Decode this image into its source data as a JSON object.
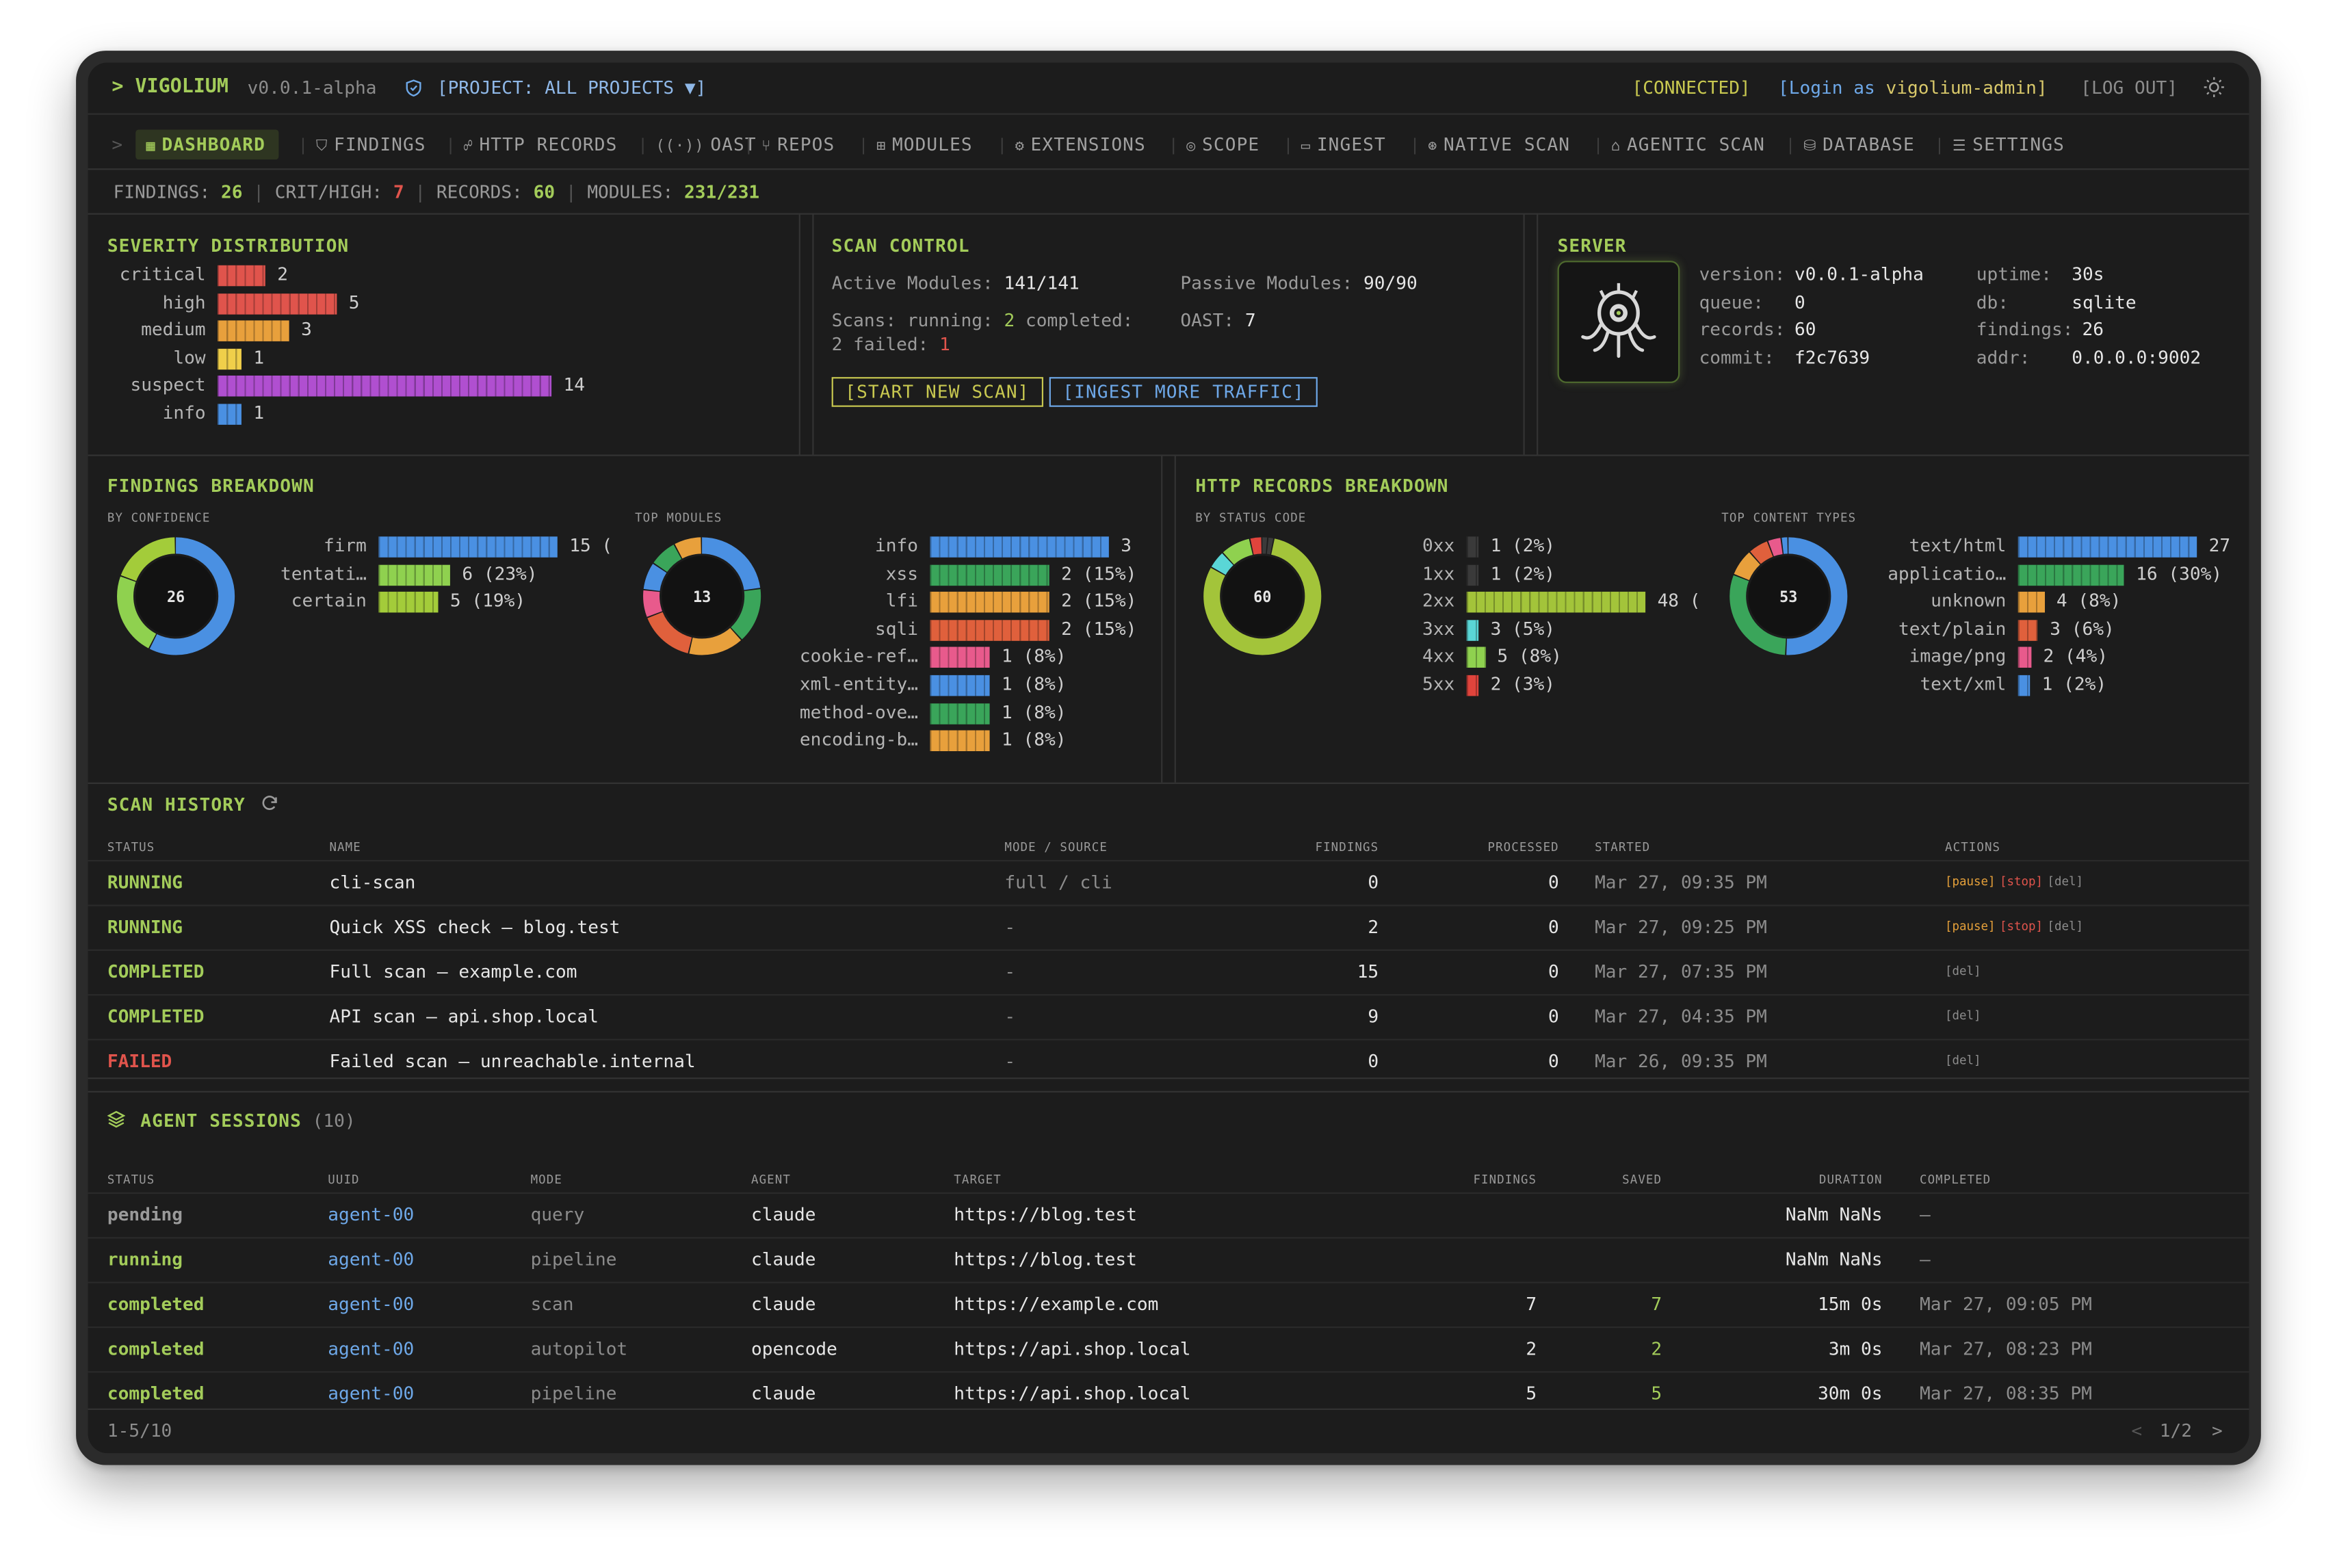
{
  "app": {
    "name": "VIGOLIUM",
    "prompt": ">",
    "version": "v0.0.1-alpha",
    "project": "[PROJECT: ALL PROJECTS ▼]"
  },
  "top_right": {
    "status": "[CONNECTED]",
    "login_prefix": "[Login as",
    "user": "vigolium-admin]",
    "logout": "[LOG OUT]"
  },
  "nav": [
    {
      "label": "DASHBOARD",
      "icon": "dashboard-icon"
    },
    {
      "label": "FINDINGS",
      "icon": "shield-icon"
    },
    {
      "label": "HTTP RECORDS",
      "icon": "network-icon"
    },
    {
      "label": "OAST",
      "icon": "radio-icon"
    },
    {
      "label": "REPOS",
      "icon": "git-icon"
    },
    {
      "label": "MODULES",
      "icon": "blocks-icon"
    },
    {
      "label": "EXTENSIONS",
      "icon": "puzzle-icon"
    },
    {
      "label": "SCOPE",
      "icon": "target-icon"
    },
    {
      "label": "INGEST",
      "icon": "inbox-icon"
    },
    {
      "label": "NATIVE SCAN",
      "icon": "radar-icon"
    },
    {
      "label": "AGENTIC SCAN",
      "icon": "bot-icon"
    },
    {
      "label": "DATABASE",
      "icon": "database-icon"
    },
    {
      "label": "SETTINGS",
      "icon": "sliders-icon"
    }
  ],
  "stats": {
    "findings_label": "FINDINGS:",
    "findings": "26",
    "crit_label": "CRIT/HIGH:",
    "crit": "7",
    "records_label": "RECORDS:",
    "records": "60",
    "modules_label": "MODULES:",
    "modules": "231/231"
  },
  "severity": {
    "title": "SEVERITY DISTRIBUTION",
    "max": 14,
    "items": [
      {
        "label": "critical",
        "value": 2,
        "color": "#e0544c"
      },
      {
        "label": "high",
        "value": 5,
        "color": "#e0544c"
      },
      {
        "label": "medium",
        "value": 3,
        "color": "#e8a03c"
      },
      {
        "label": "low",
        "value": 1,
        "color": "#f0cf4a"
      },
      {
        "label": "suspect",
        "value": 14,
        "color": "#b04fd0"
      },
      {
        "label": "info",
        "value": 1,
        "color": "#4a90e2"
      }
    ]
  },
  "scan_control": {
    "title": "SCAN CONTROL",
    "active_label": "Active Modules:",
    "active": "141/141",
    "passive_label": "Passive Modules:",
    "passive": "90/90",
    "scans_label": "Scans: running:",
    "running": "2",
    "completed_label": "completed:",
    "failed_label": "2 failed:",
    "failed": "1",
    "oast_label": "OAST:",
    "oast": "7",
    "start_btn": "[START NEW SCAN]",
    "ingest_btn": "[INGEST MORE TRAFFIC]"
  },
  "server": {
    "title": "SERVER",
    "fields_left": [
      {
        "k": "version:",
        "v": "v0.0.1-alpha"
      },
      {
        "k": "queue:",
        "v": "0"
      },
      {
        "k": "records:",
        "v": "60"
      },
      {
        "k": "commit:",
        "v": "f2c7639"
      }
    ],
    "fields_right": [
      {
        "k": "uptime:",
        "v": "30s"
      },
      {
        "k": "db:",
        "v": "sqlite"
      },
      {
        "k": "findings:",
        "v": "26"
      },
      {
        "k": "addr:",
        "v": "0.0.0.0:9002"
      }
    ]
  },
  "findings_breakdown": {
    "title": "FINDINGS BREAKDOWN",
    "confidence_title": "BY CONFIDENCE",
    "confidence_total": "26",
    "confidence": [
      {
        "label": "firm",
        "value": 15,
        "text": "15 (",
        "color": "#4a90e2"
      },
      {
        "label": "tentati…",
        "value": 6,
        "text": "6 (23%)",
        "color": "#8fd14f"
      },
      {
        "label": "certain",
        "value": 5,
        "text": "5 (19%)",
        "color": "#a3cc3a"
      }
    ],
    "modules_title": "TOP MODULES",
    "modules_total": "13",
    "modules": [
      {
        "label": "info",
        "value": 3,
        "text": "3",
        "color": "#4a90e2"
      },
      {
        "label": "xss",
        "value": 2,
        "text": "2 (15%)",
        "color": "#3aa55a"
      },
      {
        "label": "lfi",
        "value": 2,
        "text": "2 (15%)",
        "color": "#e8a03c"
      },
      {
        "label": "sqli",
        "value": 2,
        "text": "2 (15%)",
        "color": "#e0603c"
      },
      {
        "label": "cookie-ref…",
        "value": 1,
        "text": "1 (8%)",
        "color": "#e85a8c"
      },
      {
        "label": "xml-entity…",
        "value": 1,
        "text": "1 (8%)",
        "color": "#4a90e2"
      },
      {
        "label": "method-ove…",
        "value": 1,
        "text": "1 (8%)",
        "color": "#3aa55a"
      },
      {
        "label": "encoding-b…",
        "value": 1,
        "text": "1 (8%)",
        "color": "#e8a03c"
      }
    ]
  },
  "http_breakdown": {
    "title": "HTTP RECORDS BREAKDOWN",
    "status_title": "BY STATUS CODE",
    "status_total": "60",
    "status": [
      {
        "label": "0xx",
        "value": 1,
        "text": "1 (2%)",
        "color": "#3a3a3a"
      },
      {
        "label": "1xx",
        "value": 1,
        "text": "1 (2%)",
        "color": "#3a3a3a"
      },
      {
        "label": "2xx",
        "value": 48,
        "text": "48 (",
        "color": "#a3c43a"
      },
      {
        "label": "3xx",
        "value": 3,
        "text": "3 (5%)",
        "color": "#5ad6d6"
      },
      {
        "label": "4xx",
        "value": 5,
        "text": "5 (8%)",
        "color": "#8fd14f"
      },
      {
        "label": "5xx",
        "value": 2,
        "text": "2 (3%)",
        "color": "#e0443c"
      }
    ],
    "content_title": "TOP CONTENT TYPES",
    "content_total": "53",
    "content": [
      {
        "label": "text/html",
        "value": 27,
        "text": "27",
        "color": "#4a90e2"
      },
      {
        "label": "applicatio…",
        "value": 16,
        "text": "16 (30%)",
        "color": "#3aa55a"
      },
      {
        "label": "unknown",
        "value": 4,
        "text": "4 (8%)",
        "color": "#e8a03c"
      },
      {
        "label": "text/plain",
        "value": 3,
        "text": "3 (6%)",
        "color": "#e0603c"
      },
      {
        "label": "image/png",
        "value": 2,
        "text": "2 (4%)",
        "color": "#e85a8c"
      },
      {
        "label": "text/xml",
        "value": 1,
        "text": "1 (2%)",
        "color": "#4a90e2"
      }
    ]
  },
  "scan_history": {
    "title": "SCAN HISTORY",
    "columns": [
      "STATUS",
      "NAME",
      "MODE / SOURCE",
      "FINDINGS",
      "PROCESSED",
      "STARTED",
      "ACTIONS"
    ],
    "rows": [
      {
        "status": "RUNNING",
        "name": "cli-scan",
        "mode": "full / cli",
        "findings": "0",
        "processed": "0",
        "started": "Mar 27, 09:35 PM",
        "actions": [
          "[pause]",
          "[stop]",
          "[del]"
        ]
      },
      {
        "status": "RUNNING",
        "name": "Quick XSS check — blog.test",
        "mode": "-",
        "findings": "2",
        "processed": "0",
        "started": "Mar 27, 09:25 PM",
        "actions": [
          "[pause]",
          "[stop]",
          "[del]"
        ]
      },
      {
        "status": "COMPLETED",
        "name": "Full scan — example.com",
        "mode": "-",
        "findings": "15",
        "processed": "0",
        "started": "Mar 27, 07:35 PM",
        "actions": [
          "[del]"
        ]
      },
      {
        "status": "COMPLETED",
        "name": "API scan — api.shop.local",
        "mode": "-",
        "findings": "9",
        "processed": "0",
        "started": "Mar 27, 04:35 PM",
        "actions": [
          "[del]"
        ]
      },
      {
        "status": "FAILED",
        "name": "Failed scan — unreachable.internal",
        "mode": "-",
        "findings": "0",
        "processed": "0",
        "started": "Mar 26, 09:35 PM",
        "actions": [
          "[del]"
        ]
      }
    ]
  },
  "agent_sessions": {
    "title": "AGENT SESSIONS",
    "count": "(10)",
    "columns": [
      "STATUS",
      "UUID",
      "MODE",
      "AGENT",
      "TARGET",
      "FINDINGS",
      "SAVED",
      "DURATION",
      "COMPLETED"
    ],
    "rows": [
      {
        "status": "pending",
        "uuid": "agent-00",
        "mode": "query",
        "agent": "claude",
        "target": "https://blog.test",
        "findings": "",
        "saved": "",
        "duration": "NaNm NaNs",
        "completed": "—"
      },
      {
        "status": "running",
        "uuid": "agent-00",
        "mode": "pipeline",
        "agent": "claude",
        "target": "https://blog.test",
        "findings": "",
        "saved": "",
        "duration": "NaNm NaNs",
        "completed": "—"
      },
      {
        "status": "completed",
        "uuid": "agent-00",
        "mode": "scan",
        "agent": "claude",
        "target": "https://example.com",
        "findings": "7",
        "saved": "7",
        "duration": "15m 0s",
        "completed": "Mar 27, 09:05 PM"
      },
      {
        "status": "completed",
        "uuid": "agent-00",
        "mode": "autopilot",
        "agent": "opencode",
        "target": "https://api.shop.local",
        "findings": "2",
        "saved": "2",
        "duration": "3m 0s",
        "completed": "Mar 27, 08:23 PM"
      },
      {
        "status": "completed",
        "uuid": "agent-00",
        "mode": "pipeline",
        "agent": "claude",
        "target": "https://api.shop.local",
        "findings": "5",
        "saved": "5",
        "duration": "30m 0s",
        "completed": "Mar 27, 08:35 PM"
      }
    ],
    "range": "1-5/10",
    "page": "1/2",
    "prev": "<",
    "next": ">"
  }
}
